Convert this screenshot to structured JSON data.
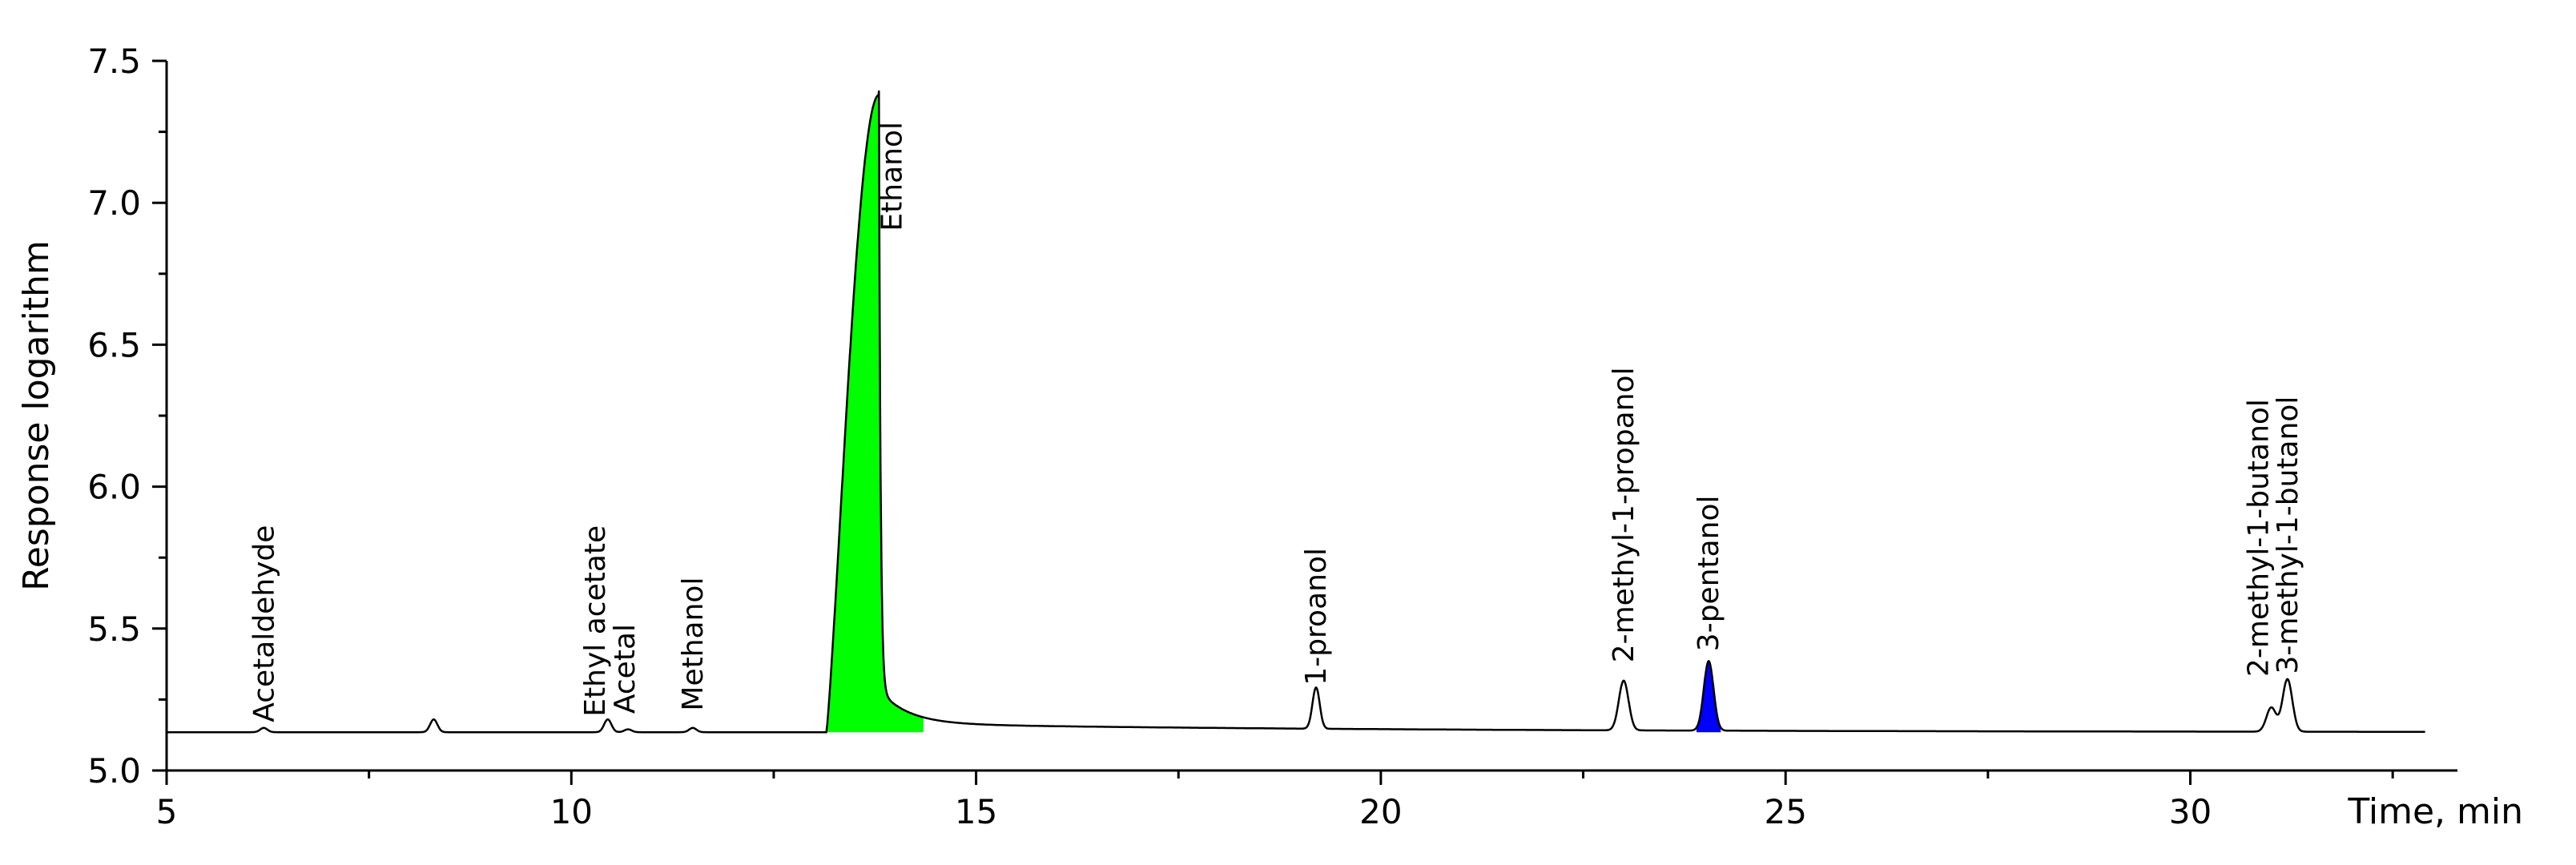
{
  "chart_data": {
    "type": "line",
    "xlabel": "Time, min",
    "ylabel": "Response logarithm",
    "xlim": [
      5,
      33.3
    ],
    "ylim": [
      5.0,
      7.5
    ],
    "x_ticks": [
      5,
      10,
      15,
      20,
      25,
      30
    ],
    "x_minor_ticks": [
      7.5,
      12.5,
      17.5,
      22.5,
      27.5,
      32.5
    ],
    "y_ticks": [
      5.0,
      5.5,
      6.0,
      6.5,
      7.0,
      7.5
    ],
    "y_minor_ticks": [
      5.25,
      5.75,
      6.25,
      6.75,
      7.25
    ],
    "grid": false,
    "baseline": 5.135,
    "line_color": "#000000",
    "peaks": [
      {
        "label": "Acetaldehyde",
        "time": 6.2,
        "height": 5.15,
        "label_y": 5.17
      },
      {
        "label": "",
        "time": 8.3,
        "height": 5.18
      },
      {
        "label": "Ethyl acetate",
        "time": 10.45,
        "height": 5.18,
        "label_y": 5.19
      },
      {
        "label": "Acetal",
        "time": 10.7,
        "height": 5.145,
        "label_y": 5.2
      },
      {
        "label": "Methanol",
        "time": 11.5,
        "height": 5.15,
        "label_y": 5.21
      },
      {
        "label": "Ethanol",
        "time": 13.8,
        "height": 7.38,
        "label_y": 6.9,
        "fill": "#00ff00"
      },
      {
        "label": "1-proanol",
        "time": 19.2,
        "height": 5.28,
        "label_y": 5.3
      },
      {
        "label": "2-methyl-1-propanol",
        "time": 23.0,
        "height": 5.31,
        "label_y": 5.38
      },
      {
        "label": "3-pentanol",
        "time": 24.05,
        "height": 5.38,
        "label_y": 5.42,
        "fill": "#0000ff"
      },
      {
        "label": "2-methyl-1-butanol",
        "time": 31.0,
        "height": 5.22,
        "label_y": 5.33
      },
      {
        "label": "3-methyl-1-butanol",
        "time": 31.2,
        "height": 5.32,
        "label_y": 5.34
      }
    ]
  }
}
